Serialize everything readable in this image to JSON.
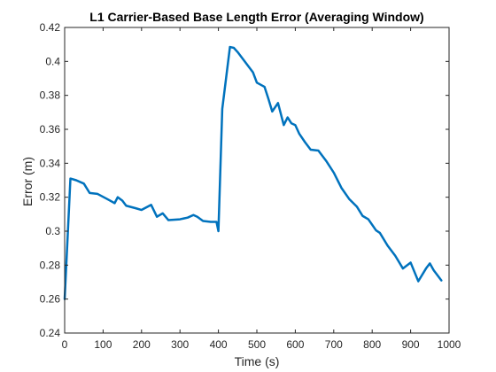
{
  "chart_data": {
    "type": "line",
    "title": "L1 Carrier-Based Base Length Error (Averaging Window)",
    "xlabel": "Time (s)",
    "ylabel": "Error (m)",
    "xlim": [
      0,
      1000
    ],
    "ylim": [
      0.24,
      0.42
    ],
    "xticks": [
      0,
      100,
      200,
      300,
      400,
      500,
      600,
      700,
      800,
      900,
      1000
    ],
    "yticks": [
      0.24,
      0.26,
      0.28,
      0.3,
      0.32,
      0.34,
      0.36,
      0.38,
      0.4,
      0.42
    ],
    "xtick_labels": [
      "0",
      "100",
      "200",
      "300",
      "400",
      "500",
      "600",
      "700",
      "800",
      "900",
      "1000"
    ],
    "ytick_labels": [
      "0.24",
      "0.26",
      "0.28",
      "0.3",
      "0.32",
      "0.34",
      "0.36",
      "0.38",
      "0.4",
      "0.42"
    ],
    "grid": false,
    "line_color": "#0072BD",
    "axis_color": "#262626",
    "series": [
      {
        "x": [
          0,
          15,
          30,
          50,
          65,
          85,
          110,
          130,
          138,
          150,
          160,
          185,
          200,
          225,
          240,
          255,
          270,
          300,
          310,
          320,
          335,
          345,
          360,
          380,
          395,
          400,
          410,
          430,
          440,
          450,
          470,
          490,
          500,
          520,
          530,
          540,
          555,
          570,
          580,
          590,
          600,
          610,
          625,
          640,
          660,
          680,
          700,
          720,
          740,
          760,
          775,
          790,
          810,
          820,
          840,
          860,
          880,
          900,
          920,
          940,
          950,
          960,
          980
        ],
        "y": [
          0.26,
          0.331,
          0.33,
          0.328,
          0.3225,
          0.322,
          0.319,
          0.3165,
          0.32,
          0.318,
          0.315,
          0.3135,
          0.3125,
          0.3155,
          0.3085,
          0.3105,
          0.3065,
          0.307,
          0.3075,
          0.308,
          0.3095,
          0.3085,
          0.306,
          0.3055,
          0.3055,
          0.3,
          0.372,
          0.4085,
          0.408,
          0.4055,
          0.3995,
          0.3935,
          0.3875,
          0.385,
          0.378,
          0.3705,
          0.3755,
          0.3625,
          0.367,
          0.3635,
          0.3625,
          0.3575,
          0.3525,
          0.348,
          0.3475,
          0.3415,
          0.3345,
          0.3255,
          0.319,
          0.3145,
          0.309,
          0.307,
          0.3005,
          0.299,
          0.2915,
          0.2855,
          0.278,
          0.2815,
          0.2705,
          0.278,
          0.281,
          0.277,
          0.271
        ]
      }
    ]
  }
}
